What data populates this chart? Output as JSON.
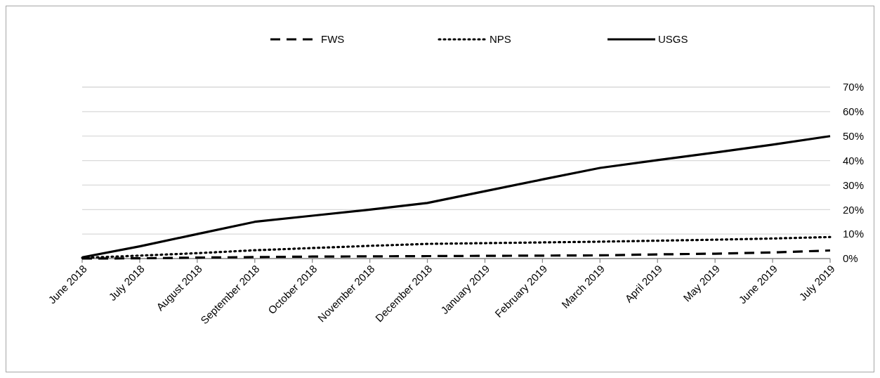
{
  "chart_data": {
    "type": "line",
    "categories": [
      "June 2018",
      "July 2018",
      "August 2018",
      "September 2018",
      "October 2018",
      "November 2018",
      "December 2018",
      "January 2019",
      "February 2019",
      "March 2019",
      "April 2019",
      "May 2019",
      "June 2019",
      "July 2019"
    ],
    "series": [
      {
        "name": "FWS",
        "color": "#000000",
        "line_style": "dashed",
        "values": [
          0,
          0.1,
          0.4,
          0.6,
          0.8,
          0.9,
          1.0,
          1.1,
          1.2,
          1.3,
          1.7,
          2.0,
          2.5,
          3.3
        ]
      },
      {
        "name": "NPS",
        "color": "#000000",
        "line_style": "dotted",
        "values": [
          0.3,
          1.2,
          2.2,
          3.4,
          4.3,
          5.2,
          6.0,
          6.3,
          6.6,
          6.9,
          7.3,
          7.7,
          8.2,
          8.8
        ]
      },
      {
        "name": "USGS",
        "color": "#000000",
        "line_style": "solid",
        "values": [
          0.5,
          5,
          10,
          15,
          17.5,
          20,
          22.7,
          27.5,
          32.3,
          37,
          40.2,
          43.3,
          46.5,
          50
        ]
      }
    ],
    "ylim": [
      0,
      70
    ],
    "yticks": [
      {
        "value": 0,
        "label": "0%"
      },
      {
        "value": 10,
        "label": "10%"
      },
      {
        "value": 20,
        "label": "20%"
      },
      {
        "value": 30,
        "label": "30%"
      },
      {
        "value": 40,
        "label": "40%"
      },
      {
        "value": 50,
        "label": "50%"
      },
      {
        "value": 60,
        "label": "60%"
      },
      {
        "value": 70,
        "label": "70%"
      }
    ],
    "grid": "y",
    "legend": "top",
    "marker": "none"
  }
}
